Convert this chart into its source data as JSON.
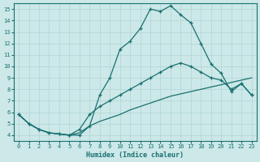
{
  "xlabel": "Humidex (Indice chaleur)",
  "bg_color": "#cce8e8",
  "line_color": "#1a7070",
  "grid_color": "#b0d4d4",
  "xlim": [
    -0.5,
    23.5
  ],
  "ylim": [
    3.5,
    15.5
  ],
  "xticks": [
    0,
    1,
    2,
    3,
    4,
    5,
    6,
    7,
    8,
    9,
    10,
    11,
    12,
    13,
    14,
    15,
    16,
    17,
    18,
    19,
    20,
    21,
    22,
    23
  ],
  "yticks": [
    4,
    5,
    6,
    7,
    8,
    9,
    10,
    11,
    12,
    13,
    14,
    15
  ],
  "line1_x": [
    0,
    1,
    2,
    3,
    4,
    5,
    6,
    7,
    8,
    9,
    10,
    11,
    12,
    13,
    14,
    15,
    16,
    17,
    18,
    19,
    20,
    21,
    22,
    23
  ],
  "line1_y": [
    5.8,
    5.0,
    4.5,
    4.2,
    4.1,
    4.0,
    4.0,
    4.8,
    7.5,
    9.0,
    11.5,
    12.2,
    13.3,
    15.0,
    14.8,
    15.3,
    14.5,
    13.8,
    12.0,
    10.2,
    9.4,
    7.8,
    8.5,
    7.5
  ],
  "line2_x": [
    0,
    1,
    2,
    3,
    4,
    5,
    6,
    7,
    8,
    9,
    10,
    11,
    12,
    13,
    14,
    15,
    16,
    17,
    18,
    19,
    20,
    21,
    22,
    23
  ],
  "line2_y": [
    5.8,
    5.0,
    4.5,
    4.2,
    4.1,
    4.0,
    4.5,
    5.8,
    6.5,
    7.0,
    7.5,
    8.0,
    8.5,
    9.0,
    9.5,
    10.0,
    10.3,
    10.0,
    9.5,
    9.0,
    8.8,
    8.0,
    8.5,
    7.5
  ],
  "line3_x": [
    0,
    1,
    2,
    3,
    4,
    5,
    6,
    7,
    8,
    9,
    10,
    11,
    12,
    13,
    14,
    15,
    16,
    17,
    18,
    19,
    20,
    21,
    22,
    23
  ],
  "line3_y": [
    5.8,
    5.0,
    4.5,
    4.2,
    4.1,
    4.0,
    4.2,
    4.8,
    5.2,
    5.5,
    5.8,
    6.2,
    6.5,
    6.8,
    7.1,
    7.4,
    7.6,
    7.8,
    8.0,
    8.2,
    8.4,
    8.6,
    8.8,
    9.0
  ]
}
